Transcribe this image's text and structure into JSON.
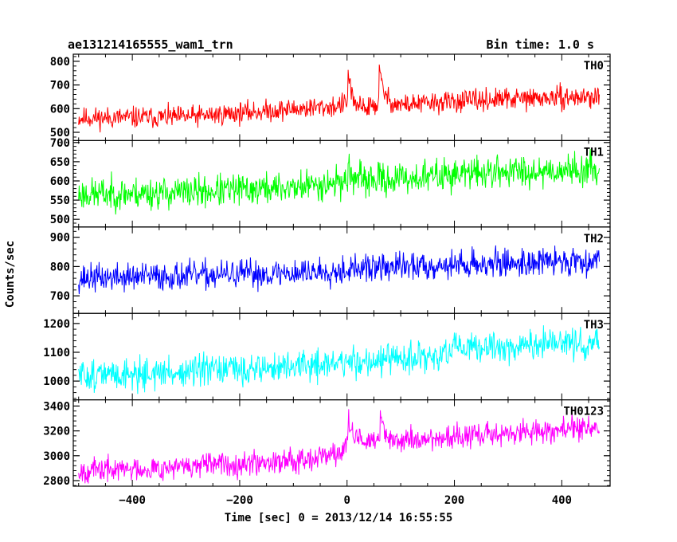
{
  "chart_data": {
    "type": "line",
    "title": "ae131214165555_wam1_trn",
    "subtitle": "Bin time: 1.0 s",
    "xlabel": "Time [sec] 0 = 2013/12/14 16:55:55",
    "ylabel": "Counts/sec",
    "xlim": [
      -510,
      490
    ],
    "xticks": [
      -400,
      -200,
      0,
      200,
      400
    ],
    "xtick_labels": [
      "−400",
      "−200",
      "0",
      "200",
      "400"
    ],
    "x_start": -500,
    "x_end": 470,
    "bin_time": 1.0,
    "panels": [
      {
        "name": "TH0",
        "color": "#ff0000",
        "ylim": [
          465,
          830
        ],
        "yticks": [
          500,
          600,
          700,
          800
        ],
        "trend": [
          [
            -500,
            560
          ],
          [
            -300,
            565
          ],
          [
            -150,
            590
          ],
          [
            -20,
            610
          ],
          [
            0,
            625
          ],
          [
            100,
            615
          ],
          [
            200,
            630
          ],
          [
            300,
            640
          ],
          [
            470,
            650
          ]
        ],
        "noise": 28,
        "events": [
          {
            "t": 2,
            "amp": 140,
            "width": 6
          },
          {
            "t": 12,
            "amp": -50,
            "width": 8
          },
          {
            "t": 60,
            "amp": 150,
            "width": 9
          },
          {
            "t": 35,
            "amp": -30,
            "width": 8
          }
        ],
        "seed": 11
      },
      {
        "name": "TH1",
        "color": "#00ff00",
        "ylim": [
          480,
          705
        ],
        "yticks": [
          500,
          550,
          600,
          650,
          700
        ],
        "trend": [
          [
            -500,
            565
          ],
          [
            -300,
            570
          ],
          [
            -100,
            583
          ],
          [
            0,
            600
          ],
          [
            100,
            605
          ],
          [
            200,
            618
          ],
          [
            300,
            625
          ],
          [
            470,
            630
          ]
        ],
        "noise": 26,
        "events": [
          {
            "t": 2,
            "amp": 45,
            "width": 6
          }
        ],
        "seed": 23
      },
      {
        "name": "TH2",
        "color": "#0000ff",
        "ylim": [
          640,
          935
        ],
        "yticks": [
          700,
          800,
          900
        ],
        "trend": [
          [
            -500,
            760
          ],
          [
            -300,
            768
          ],
          [
            -100,
            778
          ],
          [
            0,
            790
          ],
          [
            100,
            800
          ],
          [
            200,
            806
          ],
          [
            300,
            812
          ],
          [
            470,
            822
          ]
        ],
        "noise": 30,
        "events": [],
        "seed": 37
      },
      {
        "name": "TH3",
        "color": "#00ffff",
        "ylim": [
          935,
          1235
        ],
        "yticks": [
          1000,
          1100,
          1200
        ],
        "trend": [
          [
            -500,
            1020
          ],
          [
            -300,
            1030
          ],
          [
            -100,
            1050
          ],
          [
            0,
            1065
          ],
          [
            100,
            1075
          ],
          [
            170,
            1085
          ],
          [
            200,
            1110
          ],
          [
            300,
            1120
          ],
          [
            470,
            1135
          ]
        ],
        "noise": 34,
        "events": [],
        "seed": 51
      },
      {
        "name": "TH0123",
        "color": "#ff00ff",
        "ylim": [
          2755,
          3450
        ],
        "yticks": [
          2800,
          3000,
          3200,
          3400
        ],
        "trend": [
          [
            -500,
            2880
          ],
          [
            -300,
            2910
          ],
          [
            -100,
            2970
          ],
          [
            -10,
            3020
          ],
          [
            0,
            3120
          ],
          [
            100,
            3120
          ],
          [
            200,
            3150
          ],
          [
            300,
            3180
          ],
          [
            470,
            3230
          ]
        ],
        "noise": 60,
        "events": [
          {
            "t": 3,
            "amp": 170,
            "width": 7
          },
          {
            "t": 62,
            "amp": 190,
            "width": 10
          }
        ],
        "seed": 67
      }
    ]
  }
}
